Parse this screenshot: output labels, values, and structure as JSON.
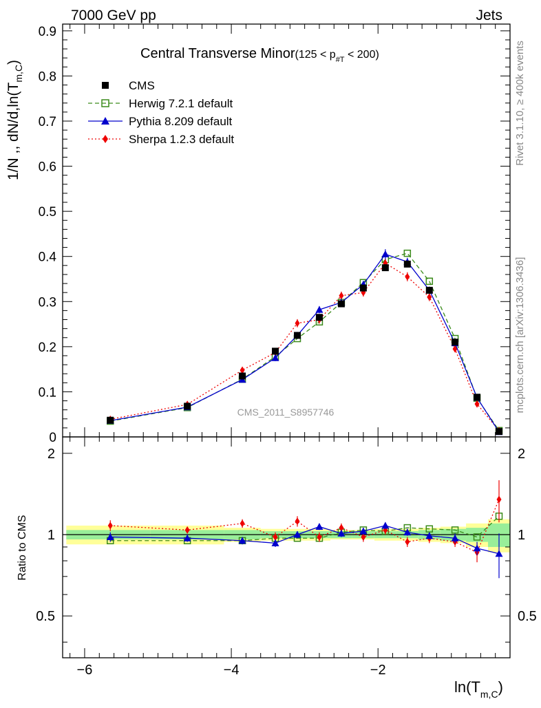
{
  "header": {
    "left": "7000 GeV pp",
    "right": "Jets"
  },
  "side_labels": {
    "top": "Rivet 3.1.10, ≥ 400k events",
    "bottom": "mcplots.cern.ch [arXiv:1306.3436]"
  },
  "colors": {
    "cms": "#000000",
    "herwig": "#3a8a1a",
    "pythia": "#0000cc",
    "sherpa": "#ee0000",
    "band_inner": "#99ee99",
    "band_outer": "#ffff99"
  },
  "chart_data": {
    "type": "line",
    "title_main": "Central Transverse Minor",
    "title_range": "(125 < p",
    "title_range_sub": "#T",
    "title_range_end": " < 200)",
    "ylabel": "1/N ,, dN/d,ln(T",
    "ylabel_sub": "m,C",
    "ylabel_end": ")",
    "ratio_ylabel": "Ratio to CMS",
    "xlabel": "ln(T",
    "xlabel_sub": "m,C",
    "xlabel_end": ")",
    "watermark": "CMS_2011_S8957746",
    "xlim": [
      -6.3,
      -0.2
    ],
    "ylim": [
      0,
      0.915
    ],
    "ratio_ylim": [
      0.35,
      2.3
    ],
    "x_ticks": [
      -6,
      -4,
      -2
    ],
    "x_tick_labels": [
      "−6",
      "−4",
      "−2"
    ],
    "y_ticks": [
      0,
      0.1,
      0.2,
      0.3,
      0.4,
      0.5,
      0.6,
      0.7,
      0.8,
      0.9
    ],
    "y_tick_labels": [
      "0",
      "0.1",
      "0.2",
      "0.3",
      "0.4",
      "0.5",
      "0.6",
      "0.7",
      "0.8",
      "0.9"
    ],
    "ratio_ticks": [
      0.5,
      1,
      2
    ],
    "ratio_tick_labels": [
      "0.5",
      "1",
      "2"
    ],
    "x": [
      -5.65,
      -4.6,
      -3.85,
      -3.4,
      -3.1,
      -2.8,
      -2.5,
      -2.2,
      -1.9,
      -1.6,
      -1.3,
      -0.95,
      -0.65,
      -0.35
    ],
    "bin_edges": [
      -6.25,
      -5.1,
      -4.1,
      -3.6,
      -3.25,
      -2.95,
      -2.65,
      -2.35,
      -2.05,
      -1.75,
      -1.45,
      -1.15,
      -0.8,
      -0.5,
      -0.2
    ],
    "series": [
      {
        "key": "cms",
        "name": "CMS",
        "values": [
          0.037,
          0.068,
          0.135,
          0.19,
          0.225,
          0.265,
          0.295,
          0.33,
          0.375,
          0.383,
          0.325,
          0.21,
          0.088,
          0.012
        ],
        "ratio": [],
        "err": []
      },
      {
        "key": "herwig",
        "name": "Herwig 7.2.1 default",
        "values": [
          0.035,
          0.065,
          0.128,
          0.178,
          0.218,
          0.255,
          0.298,
          0.342,
          0.393,
          0.407,
          0.345,
          0.218,
          0.086,
          0.014
        ],
        "ratio": [
          0.95,
          0.95,
          0.95,
          0.97,
          0.97,
          0.97,
          1.02,
          1.04,
          1.03,
          1.06,
          1.05,
          1.04,
          0.98,
          1.17
        ],
        "err": []
      },
      {
        "key": "pythia",
        "name": "Pythia 8.209 default",
        "values": [
          0.036,
          0.066,
          0.127,
          0.175,
          0.225,
          0.282,
          0.298,
          0.338,
          0.405,
          0.388,
          0.325,
          0.208,
          0.087,
          0.011
        ],
        "ratio": [
          0.98,
          0.97,
          0.95,
          0.93,
          1.0,
          1.07,
          1.01,
          1.03,
          1.08,
          1.02,
          0.99,
          0.97,
          0.89,
          0.85
        ],
        "err": [
          0.005,
          0.005,
          0.005,
          0.007,
          0.007,
          0.008,
          0.008,
          0.008,
          0.011,
          0.009,
          0.008,
          0.006,
          0.004,
          0.002
        ],
        "ratio_err": [
          0.04,
          0.03,
          0.03,
          0.03,
          0.03,
          0.03,
          0.03,
          0.03,
          0.03,
          0.03,
          0.03,
          0.04,
          0.05,
          0.16
        ]
      },
      {
        "key": "sherpa",
        "name": "Sherpa 1.2.3 default",
        "values": [
          0.039,
          0.072,
          0.148,
          0.187,
          0.252,
          0.26,
          0.313,
          0.32,
          0.385,
          0.355,
          0.31,
          0.195,
          0.073,
          0.014
        ],
        "ratio": [
          1.08,
          1.04,
          1.1,
          0.98,
          1.12,
          0.98,
          1.06,
          0.98,
          1.04,
          0.94,
          0.97,
          0.94,
          0.86,
          1.35
        ],
        "err": [
          0.004,
          0.004,
          0.006,
          0.007,
          0.009,
          0.009,
          0.009,
          0.009,
          0.01,
          0.01,
          0.009,
          0.007,
          0.005,
          0.004
        ],
        "ratio_err": [
          0.05,
          0.03,
          0.04,
          0.04,
          0.05,
          0.04,
          0.04,
          0.04,
          0.04,
          0.04,
          0.04,
          0.04,
          0.07,
          0.24
        ]
      }
    ],
    "band_inner": [
      0.04,
      0.04,
      0.04,
      0.03,
      0.03,
      0.03,
      0.03,
      0.03,
      0.03,
      0.03,
      0.04,
      0.05,
      0.06,
      0.1
    ],
    "band_outer": [
      0.08,
      0.08,
      0.06,
      0.05,
      0.05,
      0.05,
      0.04,
      0.04,
      0.05,
      0.05,
      0.06,
      0.07,
      0.1,
      0.14
    ]
  }
}
